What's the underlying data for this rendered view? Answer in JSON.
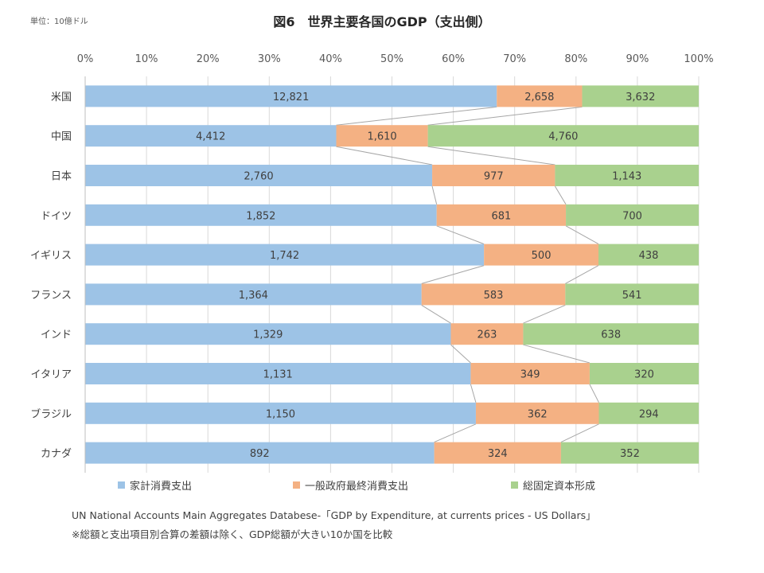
{
  "unit_label": "単位：10億ドル",
  "chart_data": {
    "type": "bar",
    "orientation": "horizontal",
    "stacked": "percent",
    "title": "図6　世界主要各国のGDP（支出側）",
    "xlabel": "",
    "ylabel": "",
    "xlim": [
      0,
      100
    ],
    "x_ticks": [
      "0%",
      "10%",
      "20%",
      "30%",
      "40%",
      "50%",
      "60%",
      "70%",
      "80%",
      "90%",
      "100%"
    ],
    "categories": [
      "米国",
      "中国",
      "日本",
      "ドイツ",
      "イギリス",
      "フランス",
      "インド",
      "イタリア",
      "ブラジル",
      "カナダ"
    ],
    "series": [
      {
        "name": "家計消費支出",
        "color": "#9dc3e6",
        "values": [
          12821,
          4412,
          2760,
          1852,
          1742,
          1364,
          1329,
          1131,
          1150,
          892
        ],
        "labels": [
          "12,821",
          "4,412",
          "2,760",
          "1,852",
          "1,742",
          "1,364",
          "1,329",
          "1,131",
          "1,150",
          "892"
        ]
      },
      {
        "name": "一般政府最終消費支出",
        "color": "#f4b183",
        "values": [
          2658,
          1610,
          977,
          681,
          500,
          583,
          263,
          349,
          362,
          324
        ],
        "labels": [
          "2,658",
          "1,610",
          "977",
          "681",
          "500",
          "583",
          "263",
          "349",
          "362",
          "324"
        ]
      },
      {
        "name": "総固定資本形成",
        "color": "#a9d18e",
        "values": [
          3632,
          4760,
          1143,
          700,
          438,
          541,
          638,
          320,
          294,
          352
        ],
        "labels": [
          "3,632",
          "4,760",
          "1,143",
          "700",
          "438",
          "541",
          "638",
          "320",
          "294",
          "352"
        ]
      }
    ],
    "grid": true,
    "series_lines": true,
    "legend_position": "bottom"
  },
  "source_text": "UN National Accounts Main Aggregates Databese-「GDP by Expenditure, at currents prices - US Dollars」",
  "note_text": "※総額と支出項目別合算の差額は除く、GDP総額が大きい10か国を比較"
}
